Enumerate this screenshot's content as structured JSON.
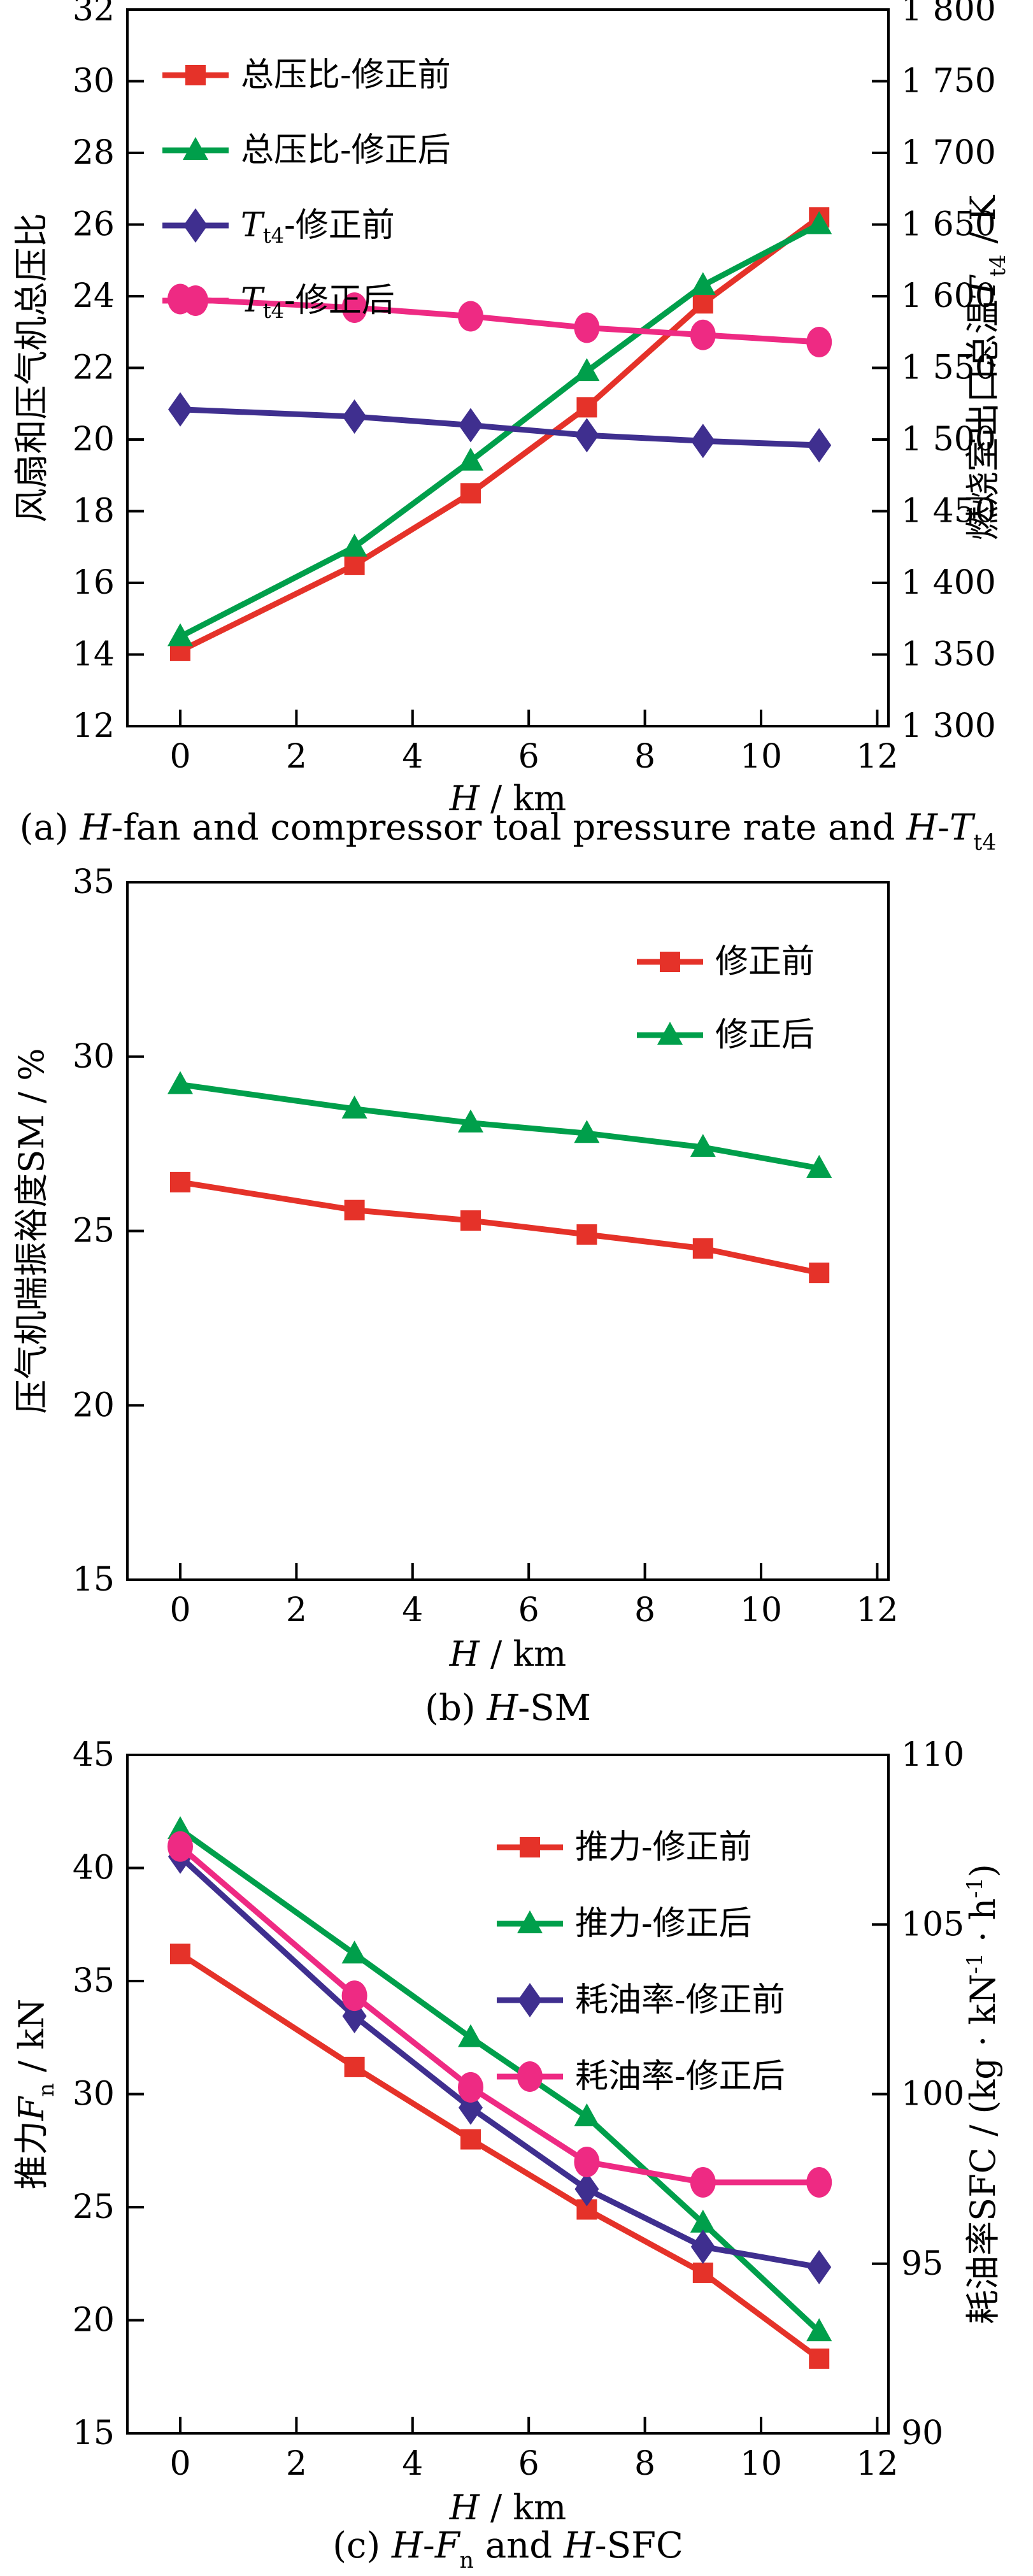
{
  "page": {
    "background": "#ffffff"
  },
  "colors": {
    "red": "#e53229",
    "green": "#009f4b",
    "purple": "#3f2f8f",
    "magenta": "#ee2a83",
    "axis": "#000000"
  },
  "chart_data": [
    {
      "id": "a",
      "type": "line",
      "x": [
        0,
        3,
        5,
        7,
        9,
        11
      ],
      "xlim": [
        0,
        12
      ],
      "xticks": [
        0,
        2,
        4,
        6,
        8,
        10,
        12
      ],
      "xlabel_rich": [
        {
          "t": "H",
          "i": true
        },
        {
          "t": " / km"
        }
      ],
      "left_axis": {
        "label_rich": [
          {
            "t": "风扇和压气机总压比"
          }
        ],
        "lim": [
          12,
          32
        ],
        "ticks": [
          12,
          14,
          16,
          18,
          20,
          22,
          24,
          26,
          28,
          30,
          32
        ],
        "tick_labels": [
          "12",
          "14",
          "16",
          "18",
          "20",
          "22",
          "24",
          "26",
          "28",
          "30",
          "32"
        ]
      },
      "right_axis": {
        "label_rich": [
          {
            "t": "燃烧室出口总温"
          },
          {
            "t": "T",
            "i": true
          },
          {
            "t": "t4",
            "sub": true
          },
          {
            "t": " / K"
          }
        ],
        "lim": [
          1300,
          1800
        ],
        "ticks": [
          1300,
          1350,
          1400,
          1450,
          1500,
          1550,
          1600,
          1650,
          1700,
          1750,
          1800
        ],
        "tick_labels": [
          "1 300",
          "1 350",
          "1 400",
          "1 450",
          "1 500",
          "1 550",
          "1 600",
          "1 650",
          "1 700",
          "1 750",
          "1 800"
        ]
      },
      "series": [
        {
          "key": "opr-before",
          "name_rich": [
            {
              "t": "总压比-修正前"
            }
          ],
          "axis": "left",
          "color": "red",
          "marker": "square",
          "values": [
            14.1,
            16.5,
            18.5,
            20.9,
            23.8,
            26.2
          ]
        },
        {
          "key": "opr-after",
          "name_rich": [
            {
              "t": "总压比-修正后"
            }
          ],
          "axis": "left",
          "color": "green",
          "marker": "triangle",
          "values": [
            14.5,
            17.0,
            19.4,
            21.9,
            24.3,
            26.0
          ]
        },
        {
          "key": "tt4-before",
          "name_rich": [
            {
              "t": "T",
              "i": true
            },
            {
              "t": "t4",
              "sub": true
            },
            {
              "t": "-修正前"
            }
          ],
          "axis": "right",
          "color": "purple",
          "marker": "diamond",
          "values": [
            1521,
            1516,
            1510,
            1503,
            1499,
            1496
          ]
        },
        {
          "key": "tt4-after",
          "name_rich": [
            {
              "t": "T",
              "i": true
            },
            {
              "t": "t4",
              "sub": true
            },
            {
              "t": "-修正后"
            }
          ],
          "axis": "right",
          "color": "magenta",
          "marker": "circle",
          "values": [
            1598,
            1592,
            1586,
            1578,
            1573,
            1568
          ]
        }
      ],
      "legend_position": "top-left",
      "caption_rich": [
        {
          "t": "(a) "
        },
        {
          "t": "H",
          "i": true
        },
        {
          "t": "-fan and compressor toal pressure rate and "
        },
        {
          "t": "H",
          "i": true
        },
        {
          "t": "-"
        },
        {
          "t": "T",
          "i": true
        },
        {
          "t": "t4",
          "sub": true
        }
      ]
    },
    {
      "id": "b",
      "type": "line",
      "x": [
        0,
        3,
        5,
        7,
        9,
        11
      ],
      "xlim": [
        0,
        12
      ],
      "xticks": [
        0,
        2,
        4,
        6,
        8,
        10,
        12
      ],
      "xlabel_rich": [
        {
          "t": "H",
          "i": true
        },
        {
          "t": " / km"
        }
      ],
      "left_axis": {
        "label_rich": [
          {
            "t": "压气机喘振裕度SM / %"
          }
        ],
        "lim": [
          15,
          35
        ],
        "ticks": [
          15,
          20,
          25,
          30,
          35
        ],
        "tick_labels": [
          "15",
          "20",
          "25",
          "30",
          "35"
        ]
      },
      "right_axis": null,
      "series": [
        {
          "key": "sm-before",
          "name_rich": [
            {
              "t": "修正前"
            }
          ],
          "axis": "left",
          "color": "red",
          "marker": "square",
          "values": [
            26.4,
            25.6,
            25.3,
            24.9,
            24.5,
            23.8
          ]
        },
        {
          "key": "sm-after",
          "name_rich": [
            {
              "t": "修正后"
            }
          ],
          "axis": "left",
          "color": "green",
          "marker": "triangle",
          "values": [
            29.2,
            28.5,
            28.1,
            27.8,
            27.4,
            26.8
          ]
        }
      ],
      "legend_position": "top-right",
      "caption_rich": [
        {
          "t": "(b) "
        },
        {
          "t": "H",
          "i": true
        },
        {
          "t": "-SM"
        }
      ]
    },
    {
      "id": "c",
      "type": "line",
      "x": [
        0,
        3,
        5,
        7,
        9,
        11
      ],
      "xlim": [
        0,
        12
      ],
      "xticks": [
        0,
        2,
        4,
        6,
        8,
        10,
        12
      ],
      "xlabel_rich": [
        {
          "t": "H",
          "i": true
        },
        {
          "t": " / km"
        }
      ],
      "left_axis": {
        "label_rich": [
          {
            "t": "推力"
          },
          {
            "t": "F",
            "i": true
          },
          {
            "t": "n",
            "sub": true
          },
          {
            "t": " / kN"
          }
        ],
        "lim": [
          15,
          45
        ],
        "ticks": [
          15,
          20,
          25,
          30,
          35,
          40,
          45
        ],
        "tick_labels": [
          "15",
          "20",
          "25",
          "30",
          "35",
          "40",
          "45"
        ]
      },
      "right_axis": {
        "label_rich": [
          {
            "t": "耗油率SFC / (kg · kN"
          },
          {
            "t": "-1",
            "sup": true
          },
          {
            "t": " · h"
          },
          {
            "t": "-1",
            "sup": true
          },
          {
            "t": ")"
          }
        ],
        "lim": [
          90,
          110
        ],
        "ticks": [
          90,
          95,
          100,
          105,
          110
        ],
        "tick_labels": [
          "90",
          "95",
          "100",
          "105",
          "110"
        ]
      },
      "series": [
        {
          "key": "thrust-before",
          "name_rich": [
            {
              "t": "推力-修正前"
            }
          ],
          "axis": "left",
          "color": "red",
          "marker": "square",
          "values": [
            36.2,
            31.2,
            28.0,
            24.9,
            22.1,
            18.3
          ]
        },
        {
          "key": "thrust-after",
          "name_rich": [
            {
              "t": "推力-修正后"
            }
          ],
          "axis": "left",
          "color": "green",
          "marker": "triangle",
          "values": [
            41.7,
            36.2,
            32.5,
            29.0,
            24.3,
            19.5
          ]
        },
        {
          "key": "sfc-before",
          "name_rich": [
            {
              "t": "耗油率-修正前"
            }
          ],
          "axis": "right",
          "color": "purple",
          "marker": "diamond",
          "values": [
            107.0,
            102.3,
            99.6,
            97.2,
            95.5,
            94.9
          ]
        },
        {
          "key": "sfc-after",
          "name_rich": [
            {
              "t": "耗油率-修正后"
            }
          ],
          "axis": "right",
          "color": "magenta",
          "marker": "circle",
          "values": [
            107.3,
            102.9,
            100.2,
            98.0,
            97.4,
            97.4
          ]
        }
      ],
      "legend_position": "middle-right",
      "caption_rich": [
        {
          "t": "(c) "
        },
        {
          "t": "H",
          "i": true
        },
        {
          "t": "-"
        },
        {
          "t": "F",
          "i": true
        },
        {
          "t": "n",
          "sub": true
        },
        {
          "t": " and "
        },
        {
          "t": "H",
          "i": true
        },
        {
          "t": "-SFC"
        }
      ]
    }
  ]
}
